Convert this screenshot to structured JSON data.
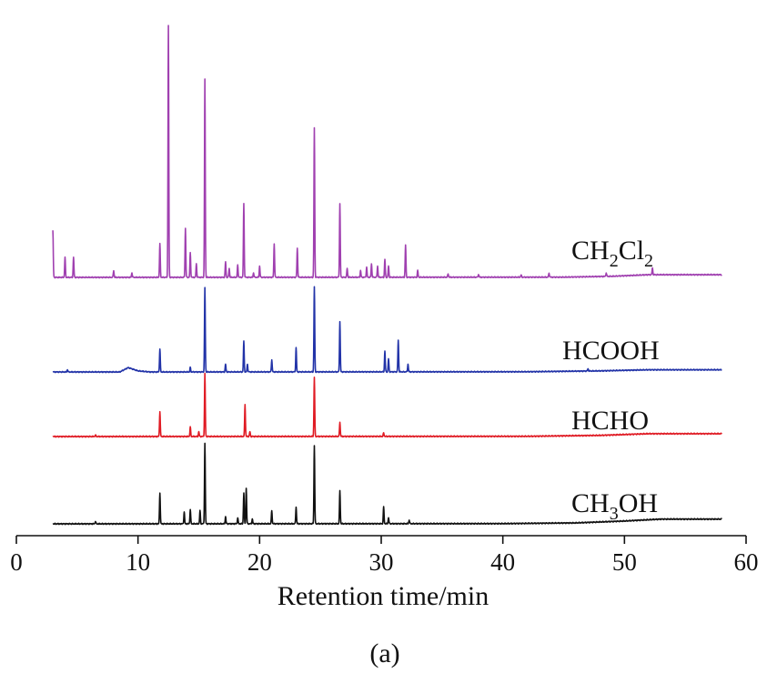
{
  "chart_data": {
    "type": "line",
    "xlabel": "Retention time/min",
    "ylabel": "",
    "xlim": [
      0,
      60
    ],
    "xticks": [
      "0",
      "10",
      "20",
      "30",
      "40",
      "50",
      "60"
    ],
    "grid": false,
    "caption": "(a)",
    "series": [
      {
        "name": "CH3OH",
        "label_main": "CH",
        "label_sub": "3",
        "label_tail": "OH",
        "color": "#111111",
        "x_start": 3.0,
        "x_end": 58.0,
        "baseline": 0,
        "hump": [
          [
            3,
            0
          ],
          [
            40,
            0.01
          ],
          [
            46,
            0.04
          ],
          [
            50,
            0.12
          ],
          [
            53,
            0.2
          ],
          [
            58,
            0.2
          ]
        ],
        "peaks": [
          [
            6.5,
            0.1
          ],
          [
            11.8,
            1.3
          ],
          [
            13.8,
            0.5
          ],
          [
            14.3,
            0.6
          ],
          [
            15.1,
            0.55
          ],
          [
            15.5,
            3.4
          ],
          [
            17.2,
            0.3
          ],
          [
            18.2,
            0.25
          ],
          [
            18.7,
            1.3
          ],
          [
            18.9,
            1.5
          ],
          [
            19.4,
            0.2
          ],
          [
            21.0,
            0.55
          ],
          [
            23.0,
            0.7
          ],
          [
            24.5,
            3.3
          ],
          [
            26.6,
            1.4
          ],
          [
            30.2,
            0.7
          ],
          [
            30.6,
            0.25
          ],
          [
            32.3,
            0.15
          ]
        ]
      },
      {
        "name": "HCHO",
        "label_main": "HCHO",
        "label_sub": "",
        "label_tail": "",
        "color": "#e01b24",
        "x_start": 3.0,
        "x_end": 58.0,
        "baseline": 0,
        "hump": [
          [
            3,
            0
          ],
          [
            42,
            0.01
          ],
          [
            48,
            0.05
          ],
          [
            52,
            0.12
          ],
          [
            58,
            0.12
          ]
        ],
        "peaks": [
          [
            6.5,
            0.06
          ],
          [
            11.8,
            1.05
          ],
          [
            14.3,
            0.4
          ],
          [
            15.0,
            0.2
          ],
          [
            15.5,
            2.65
          ],
          [
            18.8,
            1.35
          ],
          [
            19.2,
            0.2
          ],
          [
            24.5,
            2.5
          ],
          [
            26.6,
            0.6
          ],
          [
            30.2,
            0.15
          ]
        ]
      },
      {
        "name": "HCOOH",
        "label_main": "HCOOH",
        "label_sub": "",
        "label_tail": "",
        "color": "#2233a8",
        "x_start": 3.0,
        "x_end": 58.0,
        "baseline": 0,
        "hump": [
          [
            3,
            0
          ],
          [
            8.5,
            0
          ],
          [
            9.2,
            0.2
          ],
          [
            10.0,
            0.05
          ],
          [
            11,
            0
          ],
          [
            42,
            0.01
          ],
          [
            48,
            0.05
          ],
          [
            52,
            0.1
          ],
          [
            58,
            0.1
          ]
        ],
        "peaks": [
          [
            4.2,
            0.1
          ],
          [
            11.8,
            1.05
          ],
          [
            14.3,
            0.2
          ],
          [
            15.5,
            3.85
          ],
          [
            17.2,
            0.35
          ],
          [
            18.7,
            1.4
          ],
          [
            19.0,
            0.35
          ],
          [
            21.0,
            0.55
          ],
          [
            23.0,
            1.1
          ],
          [
            24.5,
            3.9
          ],
          [
            26.6,
            2.3
          ],
          [
            30.3,
            0.95
          ],
          [
            30.6,
            0.6
          ],
          [
            31.4,
            1.45
          ],
          [
            32.2,
            0.35
          ],
          [
            47.0,
            0.1
          ]
        ]
      },
      {
        "name": "CH2Cl2",
        "label_main": "CH",
        "label_sub": "2",
        "label_tail": "Cl",
        "label_sub2": "2",
        "color": "#a040b0",
        "x_start": 3.0,
        "x_end": 58.0,
        "baseline": 0,
        "hump": [
          [
            3,
            0
          ],
          [
            45,
            0.01
          ],
          [
            49,
            0.05
          ],
          [
            52,
            0.12
          ],
          [
            58,
            0.12
          ]
        ],
        "peaks": [
          [
            3.0,
            2.1
          ],
          [
            4.0,
            0.9
          ],
          [
            4.7,
            0.9
          ],
          [
            8.0,
            0.3
          ],
          [
            9.5,
            0.2
          ],
          [
            11.8,
            1.5
          ],
          [
            12.5,
            11.3
          ],
          [
            13.9,
            2.2
          ],
          [
            14.3,
            1.1
          ],
          [
            14.8,
            0.6
          ],
          [
            15.5,
            8.9
          ],
          [
            17.2,
            0.7
          ],
          [
            17.5,
            0.4
          ],
          [
            18.2,
            0.55
          ],
          [
            18.7,
            3.3
          ],
          [
            19.5,
            0.2
          ],
          [
            20.0,
            0.5
          ],
          [
            21.2,
            1.5
          ],
          [
            23.1,
            1.3
          ],
          [
            24.5,
            6.7
          ],
          [
            26.6,
            3.3
          ],
          [
            27.2,
            0.4
          ],
          [
            28.3,
            0.3
          ],
          [
            28.8,
            0.45
          ],
          [
            29.2,
            0.6
          ],
          [
            29.7,
            0.5
          ],
          [
            30.3,
            0.8
          ],
          [
            30.6,
            0.5
          ],
          [
            32.0,
            1.45
          ],
          [
            33.0,
            0.3
          ],
          [
            35.5,
            0.15
          ],
          [
            38.0,
            0.12
          ],
          [
            41.5,
            0.1
          ],
          [
            43.8,
            0.18
          ],
          [
            48.5,
            0.15
          ],
          [
            52.3,
            0.3
          ]
        ]
      }
    ]
  }
}
